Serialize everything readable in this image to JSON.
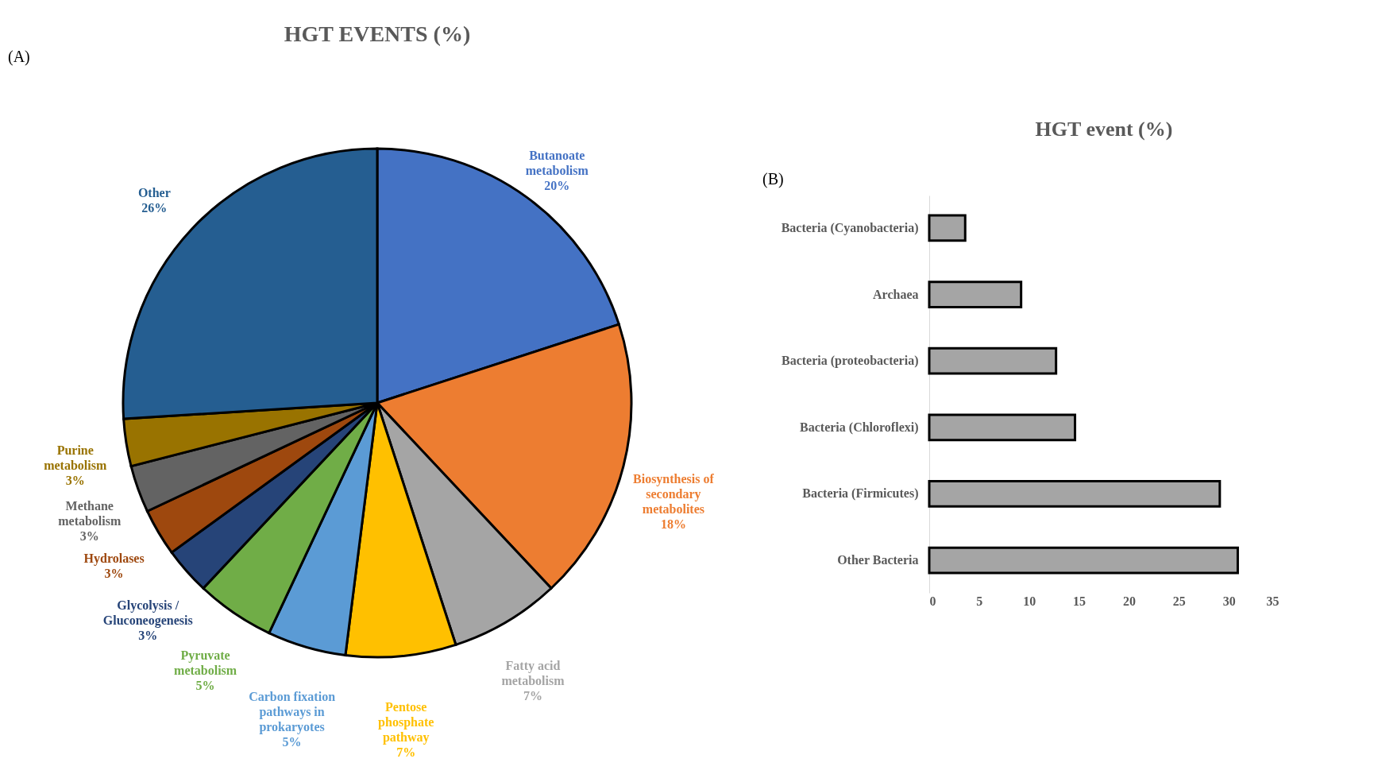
{
  "chart_data": [
    {
      "type": "pie",
      "title": "HGT EVENTS (%)",
      "annotations": [
        "(A)"
      ],
      "categories": [
        "Butanoate metabolism",
        "Biosynthesis of secondary metabolites",
        "Fatty acid metabolism",
        "Pentose phosphate pathway",
        "Carbon fixation pathways in prokaryotes",
        "Pyruvate metabolism",
        "Glycolysis / Gluconeogenesis",
        "Hydrolases",
        "Methane metabolism",
        "Purine metabolism",
        "Other"
      ],
      "values": [
        20,
        18,
        7,
        7,
        5,
        5,
        3,
        3,
        3,
        3,
        26
      ],
      "value_labels": [
        "20%",
        "18%",
        "7%",
        "7%",
        "5%",
        "5%",
        "3%",
        "3%",
        "3%",
        "3%",
        "26%"
      ],
      "colors": [
        "#4472c4",
        "#ed7d31",
        "#a5a5a5",
        "#ffc000",
        "#5b9bd5",
        "#70ad47",
        "#264478",
        "#9e480e",
        "#636363",
        "#997300",
        "#255e91"
      ],
      "legend": false
    },
    {
      "type": "bar",
      "orientation": "horizontal",
      "title": "HGT event (%)",
      "annotations": [
        "(B)"
      ],
      "categories": [
        "Bacteria (Cyanobacteria)",
        "Archaea",
        "Bacteria (proteobacteria)",
        "Bacteria (Chloroflexi)",
        "Bacteria (Firmicutes)",
        "Other Bacteria"
      ],
      "values": [
        3.6,
        9.2,
        12.7,
        14.6,
        29.1,
        30.9
      ],
      "color": "#a5a5a5",
      "xlim": [
        0,
        35
      ],
      "xticks": [
        0,
        5,
        10,
        15,
        20,
        25,
        30,
        35
      ],
      "grid": false
    }
  ]
}
